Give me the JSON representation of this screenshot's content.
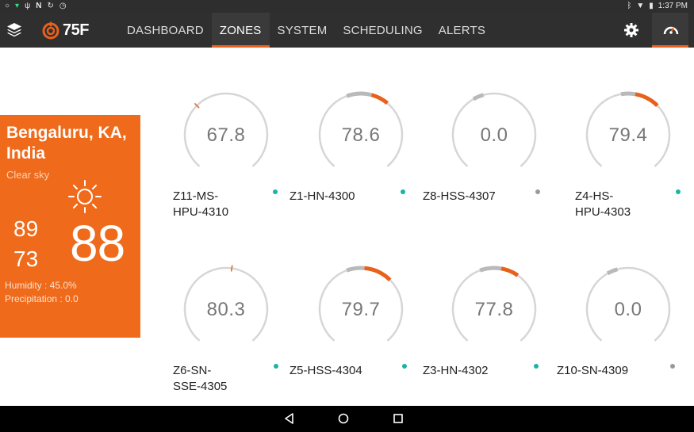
{
  "status_bar": {
    "left_icons": [
      "circle-icon",
      "wifi-icon",
      "usb-icon",
      "n-icon",
      "sync-icon",
      "alarm-icon"
    ],
    "time": "1:37 PM"
  },
  "header": {
    "brand": "75F",
    "tabs": [
      {
        "label": "DASHBOARD",
        "active": false
      },
      {
        "label": "ZONES",
        "active": true
      },
      {
        "label": "SYSTEM",
        "active": false
      },
      {
        "label": "SCHEDULING",
        "active": false
      },
      {
        "label": "ALERTS",
        "active": false
      }
    ]
  },
  "weather": {
    "city": "Bengaluru, KA, India",
    "condition": "Clear sky",
    "high": "89",
    "low": "73",
    "current": "88",
    "humidity": "Humidity : 45.0%",
    "precipitation": "Precipitation : 0.0"
  },
  "zones": [
    {
      "name_lines": [
        "Z11-MS-",
        "HPU-4310"
      ],
      "temp": "67.8",
      "status_color": "#1bb3a5"
    },
    {
      "name_lines": [
        "Z1-HN-4300"
      ],
      "temp": "78.6",
      "status_color": "#1bb3a5"
    },
    {
      "name_lines": [
        "Z8-HSS-4307"
      ],
      "temp": "0.0",
      "status_color": "#9a9a9a"
    },
    {
      "name_lines": [
        "Z4-HS-",
        "HPU-4303"
      ],
      "temp": "79.4",
      "status_color": "#1bb3a5"
    },
    {
      "name_lines": [
        "Z6-SN-",
        "SSE-4305"
      ],
      "temp": "80.3",
      "status_color": "#1bb3a5"
    },
    {
      "name_lines": [
        "Z5-HSS-4304"
      ],
      "temp": "79.7",
      "status_color": "#1bb3a5"
    },
    {
      "name_lines": [
        "Z3-HN-4302"
      ],
      "temp": "77.8",
      "status_color": "#1bb3a5"
    },
    {
      "name_lines": [
        "Z10-SN-4309"
      ],
      "temp": "0.0",
      "status_color": "#9a9a9a"
    }
  ],
  "colors": {
    "accent": "#e8611a",
    "dial_track": "#d6d6d6",
    "dial_band": "#b9b9b9"
  }
}
